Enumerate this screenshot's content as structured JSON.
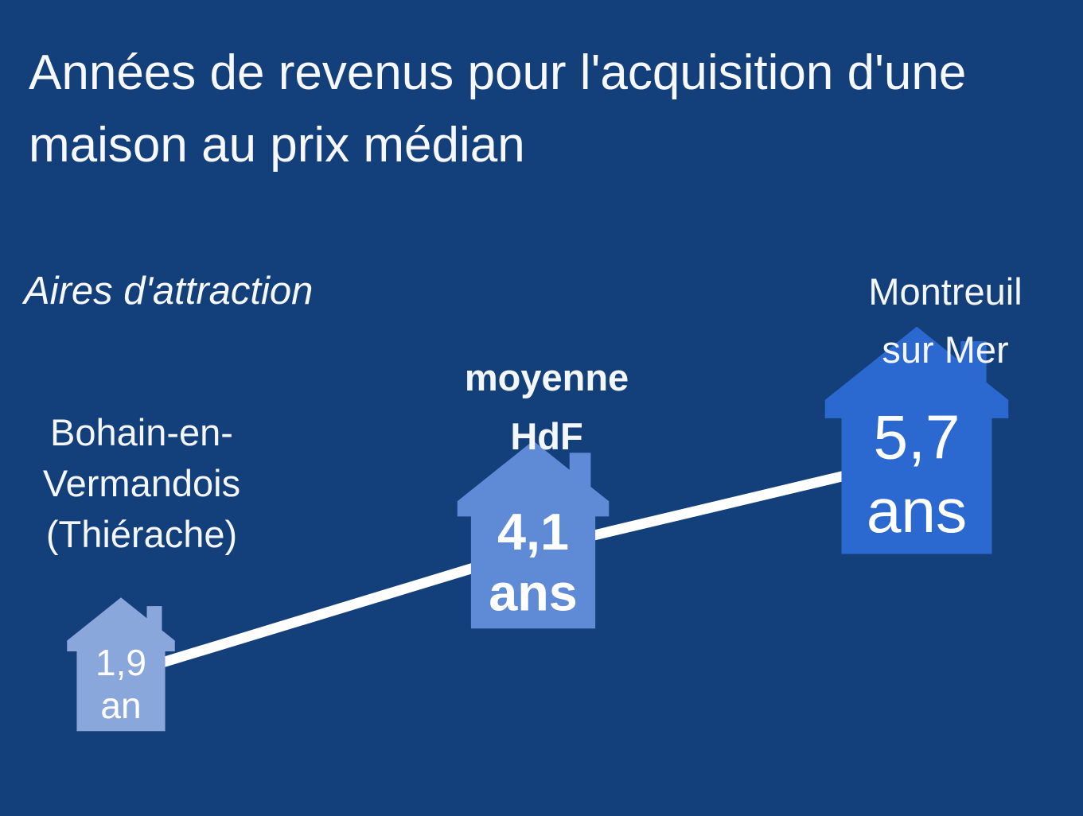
{
  "title": "Années de revenus pour l'acquisition d'une maison au prix médian",
  "subtitle": "Aires d'attraction",
  "colors": {
    "background": "#13407a",
    "line": "#ffffff",
    "text": "#f6f8fb"
  },
  "chart_data": {
    "type": "line",
    "title": "Années de revenus pour l'acquisition d'une maison au prix médian",
    "subtitle": "Aires d'attraction",
    "categories": [
      "Bohain-en-Vermandois (Thiérache)",
      "moyenne HdF",
      "Montreuil sur Mer"
    ],
    "points": [
      {
        "category": "Bohain-en-Vermandois (Thiérache)",
        "label_lines": [
          "Bohain-en-",
          "Vermandois",
          "(Thiérache)"
        ],
        "value": 1.9,
        "value_text": "1,9",
        "unit_text": "an",
        "color": "#8aa7dc",
        "bold": false
      },
      {
        "category": "moyenne HdF",
        "label_lines": [
          "moyenne",
          "HdF"
        ],
        "value": 4.1,
        "value_text": "4,1",
        "unit_text": "ans",
        "color": "#5f8ad6",
        "bold": true
      },
      {
        "category": "Montreuil sur Mer",
        "label_lines": [
          "Montreuil",
          "sur Mer"
        ],
        "value": 5.7,
        "value_text": "5,7",
        "unit_text": "ans",
        "color": "#2b68cf",
        "bold": false
      }
    ],
    "icon": "house-icon",
    "grid": false,
    "legend": "none"
  }
}
